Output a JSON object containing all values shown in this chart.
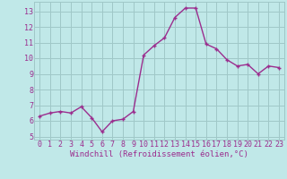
{
  "x": [
    0,
    1,
    2,
    3,
    4,
    5,
    6,
    7,
    8,
    9,
    10,
    11,
    12,
    13,
    14,
    15,
    16,
    17,
    18,
    19,
    20,
    21,
    22,
    23
  ],
  "y": [
    6.3,
    6.5,
    6.6,
    6.5,
    6.9,
    6.2,
    5.3,
    6.0,
    6.1,
    6.6,
    10.2,
    10.8,
    11.3,
    12.6,
    13.2,
    13.2,
    10.9,
    10.6,
    9.9,
    9.5,
    9.6,
    9.0,
    9.5,
    9.4
  ],
  "line_color": "#9b2d8e",
  "marker": "+",
  "marker_size": 3,
  "marker_lw": 1.0,
  "bg_color": "#c0e8e8",
  "grid_color": "#a0c8c8",
  "xlabel": "Windchill (Refroidissement éolien,°C)",
  "tick_color": "#9b2d8e",
  "ylim": [
    4.8,
    13.6
  ],
  "xlim": [
    -0.5,
    23.5
  ],
  "yticks": [
    5,
    6,
    7,
    8,
    9,
    10,
    11,
    12,
    13
  ],
  "xticks": [
    0,
    1,
    2,
    3,
    4,
    5,
    6,
    7,
    8,
    9,
    10,
    11,
    12,
    13,
    14,
    15,
    16,
    17,
    18,
    19,
    20,
    21,
    22,
    23
  ],
  "tick_fontsize": 6,
  "xlabel_fontsize": 6.5,
  "line_width": 1.0
}
